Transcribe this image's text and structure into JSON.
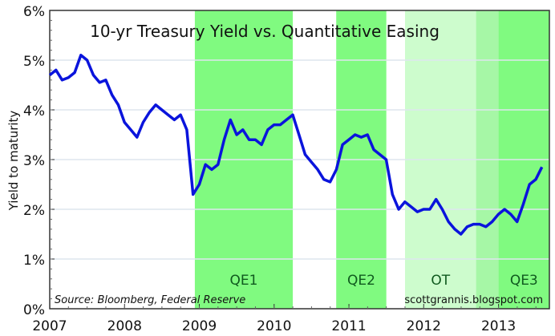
{
  "chart_data": {
    "type": "line",
    "title": "10-yr Treasury Yield vs. Quantitative Easing",
    "ylabel": "Yield to maturity",
    "xlabel": "",
    "ylim": [
      0,
      6
    ],
    "xlim": [
      2007,
      2013.68
    ],
    "yticks": [
      "0%",
      "1%",
      "2%",
      "3%",
      "4%",
      "5%",
      "6%"
    ],
    "xticks": [
      "2007",
      "2008",
      "2009",
      "2010",
      "2011",
      "2012",
      "2013"
    ],
    "grid": true,
    "source": "Source: Bloomberg, Federal Reserve",
    "credit": "scottgrannis.blogspot.com",
    "colors": {
      "line": "#0a14dc",
      "qe": "#80fa80",
      "ot": "#cdfccd",
      "overlap": "#a6f7a6",
      "label": "#0f5a1e"
    },
    "regions": [
      {
        "label": "QE1",
        "start": 2008.94,
        "end": 2010.25,
        "kind": "qe"
      },
      {
        "label": "QE2",
        "start": 2010.83,
        "end": 2011.5,
        "kind": "qe"
      },
      {
        "label": "OT",
        "start": 2011.75,
        "end": 2012.7,
        "kind": "ot"
      },
      {
        "label": "",
        "start": 2012.7,
        "end": 2013.0,
        "kind": "overlap"
      },
      {
        "label": "QE3",
        "start": 2013.0,
        "end": 2013.68,
        "kind": "qe"
      }
    ],
    "series": [
      {
        "name": "10-yr Treasury Yield",
        "start": 2007.0,
        "step": 0.0833,
        "values": [
          4.7,
          4.8,
          4.6,
          4.65,
          4.75,
          5.1,
          5.0,
          4.7,
          4.55,
          4.6,
          4.3,
          4.1,
          3.75,
          3.6,
          3.45,
          3.75,
          3.95,
          4.1,
          4.0,
          3.9,
          3.8,
          3.9,
          3.6,
          2.3,
          2.5,
          2.9,
          2.8,
          2.9,
          3.4,
          3.8,
          3.5,
          3.6,
          3.4,
          3.4,
          3.3,
          3.6,
          3.7,
          3.7,
          3.8,
          3.9,
          3.5,
          3.1,
          2.95,
          2.8,
          2.6,
          2.55,
          2.8,
          3.3,
          3.4,
          3.5,
          3.45,
          3.5,
          3.2,
          3.1,
          3.0,
          2.3,
          2.0,
          2.15,
          2.05,
          1.95,
          2.0,
          2.0,
          2.2,
          2.0,
          1.75,
          1.6,
          1.5,
          1.65,
          1.7,
          1.7,
          1.65,
          1.75,
          1.9,
          2.0,
          1.9,
          1.75,
          2.1,
          2.5,
          2.6,
          2.85
        ]
      }
    ]
  }
}
